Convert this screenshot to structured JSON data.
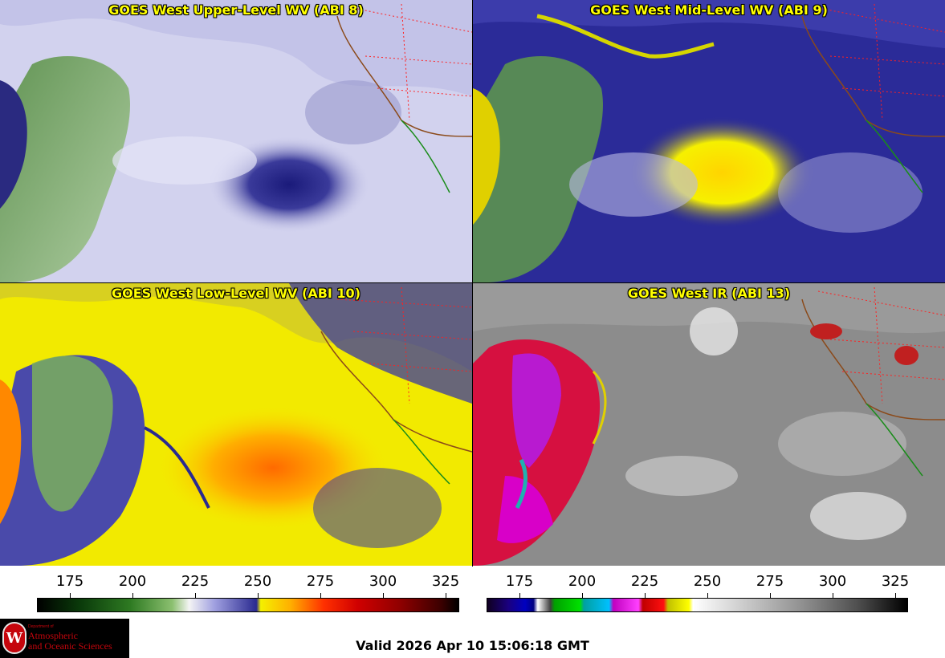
{
  "panels": [
    {
      "title": "GOES West Upper-Level WV (ABI 8)"
    },
    {
      "title": "GOES West Mid-Level WV (ABI 9)"
    },
    {
      "title": "GOES West Low-Level WV (ABI 10)"
    },
    {
      "title": "GOES West IR (ABI 13)"
    }
  ],
  "colorbars": [
    {
      "name": "wv-colorbar",
      "ticks": [
        "175",
        "200",
        "225",
        "250",
        "275",
        "300",
        "325"
      ]
    },
    {
      "name": "ir-colorbar",
      "ticks": [
        "175",
        "200",
        "225",
        "250",
        "275",
        "300",
        "325"
      ]
    }
  ],
  "logo": {
    "department": "Department of",
    "line1": "Atmospheric",
    "line2": "and Oceanic Sciences"
  },
  "valid_time": "Valid 2026 Apr 10 15:06:18 GMT",
  "colors": {
    "title_yellow": "#ffff00",
    "logo_red": "#c5050c",
    "border_red": "#ff2020",
    "coast_brown": "#8b4a1a",
    "coast_green": "#1a8c1a"
  }
}
